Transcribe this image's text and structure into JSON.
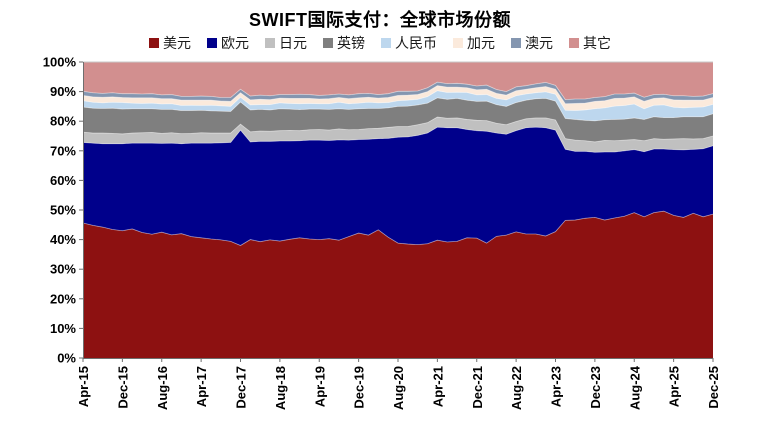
{
  "page": {
    "background": "#ffffff"
  },
  "chart_data": {
    "type": "area",
    "stacked": true,
    "title": "SWIFT国际支付：全球市场份额",
    "legend_position": "top",
    "grid": false,
    "ylim": [
      0,
      100
    ],
    "ytick_step": 10,
    "yticks": [
      "0%",
      "10%",
      "20%",
      "30%",
      "40%",
      "50%",
      "60%",
      "70%",
      "80%",
      "90%",
      "100%"
    ],
    "x_range": "Apr-2015 to Dec-2025, one value every 2 months (65 points per series)",
    "x_tick_labels": [
      "Apr-15",
      "Dec-15",
      "Aug-16",
      "Apr-17",
      "Dec-17",
      "Aug-18",
      "Apr-19",
      "Dec-19",
      "Aug-20",
      "Apr-21",
      "Dec-21",
      "Aug-22",
      "Apr-23",
      "Dec-23",
      "Aug-24",
      "Apr-25",
      "Dec-25"
    ],
    "x_tick_every": 4,
    "axis_color": "#6e6e6e",
    "tick_label_color": "#000000",
    "boundary_stroke": "rgba(255,255,255,0.5)",
    "series": [
      {
        "key": "usd",
        "name": "美元",
        "color": "#8D1111",
        "values": [
          45.6,
          44.8,
          44.2,
          43.4,
          43.0,
          43.6,
          42.4,
          41.8,
          42.5,
          41.6,
          42.0,
          41.0,
          40.6,
          40.2,
          39.9,
          39.4,
          38.0,
          40.0,
          39.3,
          39.9,
          39.5,
          40.1,
          40.6,
          40.2,
          40.0,
          40.3,
          39.8,
          41.0,
          42.2,
          41.5,
          43.3,
          40.8,
          38.8,
          38.5,
          38.3,
          38.6,
          39.8,
          39.2,
          39.4,
          40.6,
          40.5,
          38.8,
          41.1,
          41.5,
          42.6,
          41.9,
          41.9,
          41.2,
          42.7,
          46.5,
          46.6,
          47.2,
          47.5,
          46.6,
          47.3,
          47.9,
          49.1,
          47.7,
          49.1,
          49.6,
          48.2,
          47.5,
          48.9,
          47.7,
          48.6
        ]
      },
      {
        "key": "eur",
        "name": "欧元",
        "color": "#00008B",
        "values": [
          27.2,
          27.8,
          28.2,
          29.0,
          29.4,
          29.0,
          30.2,
          30.8,
          30.0,
          31.0,
          30.4,
          31.6,
          32.0,
          32.4,
          32.8,
          33.4,
          39.0,
          33.0,
          33.9,
          33.3,
          33.8,
          33.2,
          32.8,
          33.4,
          33.6,
          33.2,
          33.9,
          32.6,
          31.6,
          32.4,
          30.8,
          33.4,
          35.8,
          36.2,
          36.9,
          37.4,
          38.2,
          38.6,
          38.4,
          36.6,
          36.3,
          37.8,
          34.9,
          34.1,
          34.2,
          35.9,
          36.1,
          36.6,
          34.3,
          24.0,
          23.2,
          22.6,
          22.0,
          23.0,
          22.3,
          22.1,
          21.3,
          22.0,
          21.5,
          21.0,
          22.2,
          22.8,
          21.6,
          23.0,
          23.1
        ]
      },
      {
        "key": "jpy",
        "name": "日元",
        "color": "#C0C0C0",
        "values": [
          3.5,
          3.4,
          3.6,
          3.5,
          3.3,
          3.4,
          3.5,
          3.6,
          3.4,
          3.5,
          3.4,
          3.3,
          3.5,
          3.4,
          3.3,
          3.2,
          2.0,
          3.4,
          3.5,
          3.4,
          3.5,
          3.6,
          3.4,
          3.5,
          3.6,
          3.5,
          3.7,
          3.5,
          3.4,
          3.6,
          3.5,
          3.7,
          3.6,
          3.5,
          3.6,
          3.5,
          3.4,
          3.2,
          3.3,
          3.4,
          3.5,
          3.6,
          3.3,
          3.2,
          3.1,
          3.0,
          3.1,
          3.3,
          3.4,
          3.6,
          3.8,
          3.6,
          3.5,
          3.9,
          3.8,
          3.6,
          3.4,
          3.7,
          3.5,
          3.3,
          3.6,
          3.8,
          3.5,
          3.4,
          3.3
        ]
      },
      {
        "key": "gbp",
        "name": "英镑",
        "color": "#7F7F7F",
        "values": [
          8.5,
          8.4,
          8.3,
          8.5,
          8.4,
          8.2,
          8.1,
          8.0,
          8.1,
          7.9,
          7.8,
          7.7,
          7.6,
          7.5,
          7.4,
          7.3,
          7.5,
          7.4,
          7.3,
          7.2,
          7.4,
          7.2,
          7.1,
          7.0,
          6.9,
          7.0,
          6.8,
          6.9,
          7.0,
          6.8,
          6.7,
          6.6,
          6.8,
          6.9,
          6.7,
          6.6,
          6.5,
          6.4,
          6.6,
          6.5,
          6.4,
          6.6,
          6.3,
          6.2,
          6.4,
          6.3,
          6.5,
          6.6,
          6.4,
          6.8,
          7.0,
          6.9,
          7.1,
          7.0,
          7.2,
          7.1,
          7.3,
          7.2,
          7.4,
          7.3,
          7.2,
          7.4,
          7.5,
          7.4,
          7.5
        ]
      },
      {
        "key": "rmb",
        "name": "人民币",
        "color": "#BDD7EE",
        "values": [
          2.1,
          2.0,
          1.9,
          2.0,
          2.2,
          1.9,
          1.8,
          1.9,
          1.8,
          1.9,
          1.7,
          1.8,
          1.6,
          1.9,
          1.8,
          1.7,
          1.6,
          1.7,
          1.6,
          1.8,
          2.0,
          1.9,
          2.0,
          1.9,
          1.8,
          1.9,
          2.2,
          1.9,
          1.9,
          2.1,
          1.9,
          1.8,
          1.9,
          2.0,
          1.9,
          2.2,
          2.4,
          2.3,
          2.1,
          2.6,
          2.2,
          2.2,
          2.1,
          2.2,
          2.3,
          2.1,
          2.0,
          2.2,
          2.3,
          2.8,
          3.0,
          3.5,
          4.1,
          4.0,
          4.5,
          4.6,
          4.7,
          3.6,
          3.9,
          4.3,
          3.5,
          3.0,
          3.2,
          3.3,
          3.2
        ]
      },
      {
        "key": "cad",
        "name": "加元",
        "color": "#FBEADC",
        "values": [
          1.8,
          1.8,
          1.9,
          1.8,
          1.7,
          1.8,
          1.9,
          1.8,
          1.8,
          1.7,
          1.8,
          1.7,
          1.8,
          1.7,
          1.6,
          1.7,
          1.5,
          1.7,
          1.8,
          1.7,
          1.6,
          1.7,
          1.8,
          1.7,
          1.6,
          1.7,
          1.6,
          1.7,
          1.8,
          1.7,
          1.6,
          1.7,
          1.8,
          1.7,
          1.6,
          1.7,
          1.7,
          1.8,
          1.7,
          1.6,
          1.7,
          1.8,
          1.7,
          1.6,
          1.7,
          1.6,
          1.7,
          1.8,
          1.7,
          2.2,
          2.4,
          2.3,
          2.5,
          2.4,
          2.6,
          2.5,
          2.4,
          2.5,
          2.3,
          2.4,
          2.5,
          2.6,
          2.4,
          2.3,
          2.3
        ]
      },
      {
        "key": "aud",
        "name": "澳元",
        "color": "#8496B0",
        "values": [
          1.4,
          1.4,
          1.3,
          1.4,
          1.3,
          1.4,
          1.3,
          1.4,
          1.3,
          1.4,
          1.3,
          1.3,
          1.4,
          1.3,
          1.2,
          1.3,
          1.2,
          1.3,
          1.4,
          1.3,
          1.2,
          1.3,
          1.4,
          1.3,
          1.2,
          1.3,
          1.2,
          1.3,
          1.4,
          1.3,
          1.2,
          1.3,
          1.4,
          1.3,
          1.2,
          1.3,
          1.2,
          1.2,
          1.3,
          1.2,
          1.3,
          1.4,
          1.3,
          1.2,
          1.3,
          1.2,
          1.3,
          1.4,
          1.3,
          1.4,
          1.5,
          1.4,
          1.3,
          1.4,
          1.5,
          1.4,
          1.3,
          1.4,
          1.3,
          1.2,
          1.4,
          1.5,
          1.3,
          1.4,
          1.3
        ]
      },
      {
        "key": "other",
        "name": "其它",
        "color": "#D28F8F",
        "remainder_to_100": true
      }
    ]
  }
}
